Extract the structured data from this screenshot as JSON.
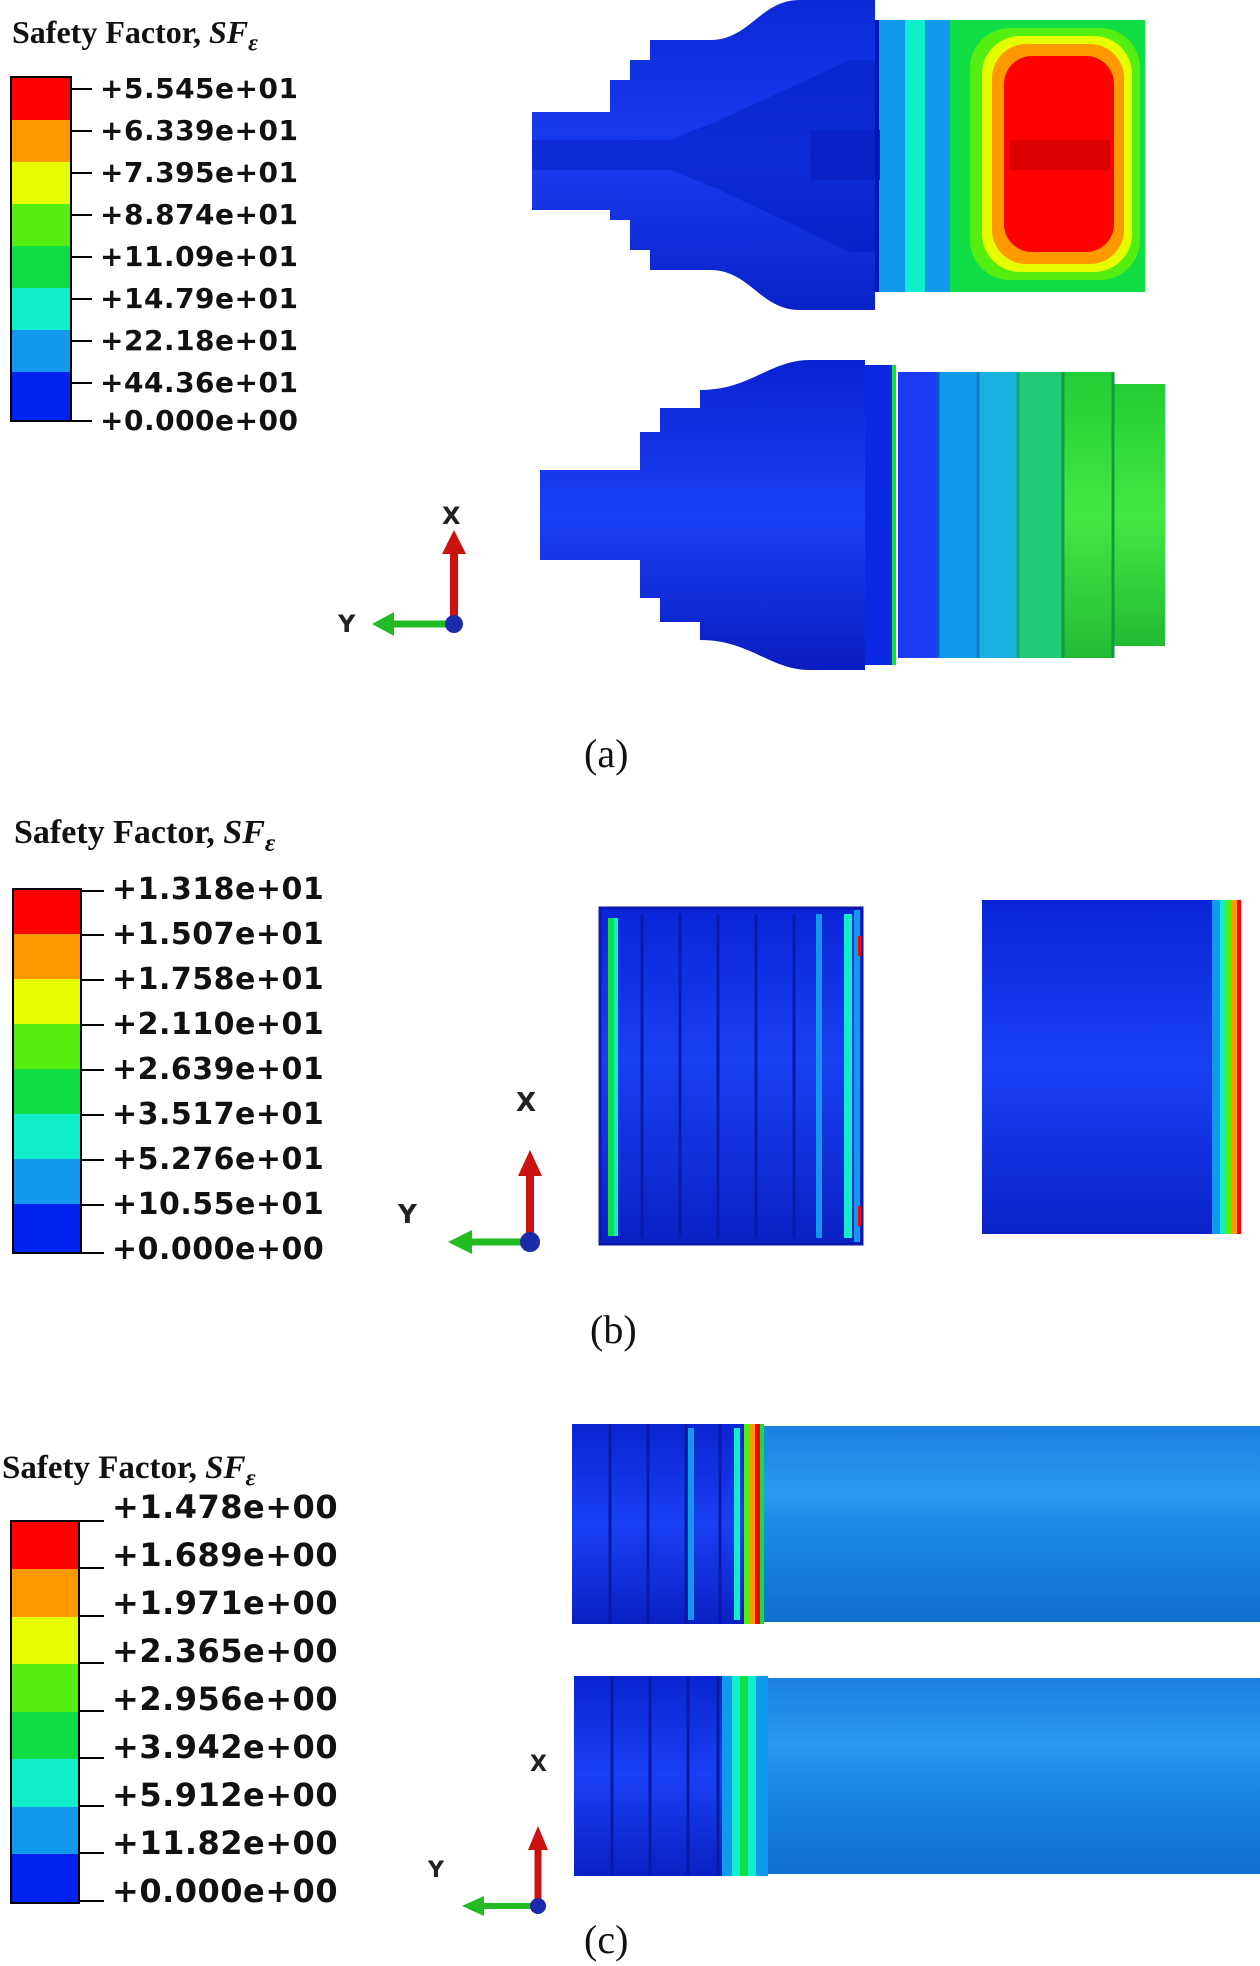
{
  "colors": [
    "#ff0000",
    "#ff9900",
    "#e6ff00",
    "#55ee11",
    "#11dd44",
    "#11eecc",
    "#1199ee",
    "#0022ee"
  ],
  "panels": [
    {
      "id": "a",
      "caption": "(a)",
      "legend": {
        "title_prefix": "Safety Factor, ",
        "symbol": "SF",
        "subscript": "ε",
        "labels": [
          "+5.545e+01",
          "+6.339e+01",
          "+7.395e+01",
          "+8.874e+01",
          "+11.09e+01",
          "+14.79e+01",
          "+22.18e+01",
          "+44.36e+01",
          "+0.000e+00"
        ]
      },
      "triad": {
        "x": "X",
        "y": "Y"
      }
    },
    {
      "id": "b",
      "caption": "(b)",
      "legend": {
        "title_prefix": "Safety Factor, ",
        "symbol": "SF",
        "subscript": "ε",
        "labels": [
          "+1.318e+01",
          "+1.507e+01",
          "+1.758e+01",
          "+2.110e+01",
          "+2.639e+01",
          "+3.517e+01",
          "+5.276e+01",
          "+10.55e+01",
          "+0.000e+00"
        ]
      },
      "triad": {
        "x": "X",
        "y": "Y"
      }
    },
    {
      "id": "c",
      "caption": "(c)",
      "legend": {
        "title_prefix": "Safety Factor, ",
        "symbol": "SF",
        "subscript": "ε",
        "labels": [
          "+1.478e+00",
          "+1.689e+00",
          "+1.971e+00",
          "+2.365e+00",
          "+2.956e+00",
          "+3.942e+00",
          "+5.912e+00",
          "+11.82e+00",
          "+0.000e+00"
        ]
      },
      "triad": {
        "x": "X",
        "y": "Y"
      }
    }
  ]
}
